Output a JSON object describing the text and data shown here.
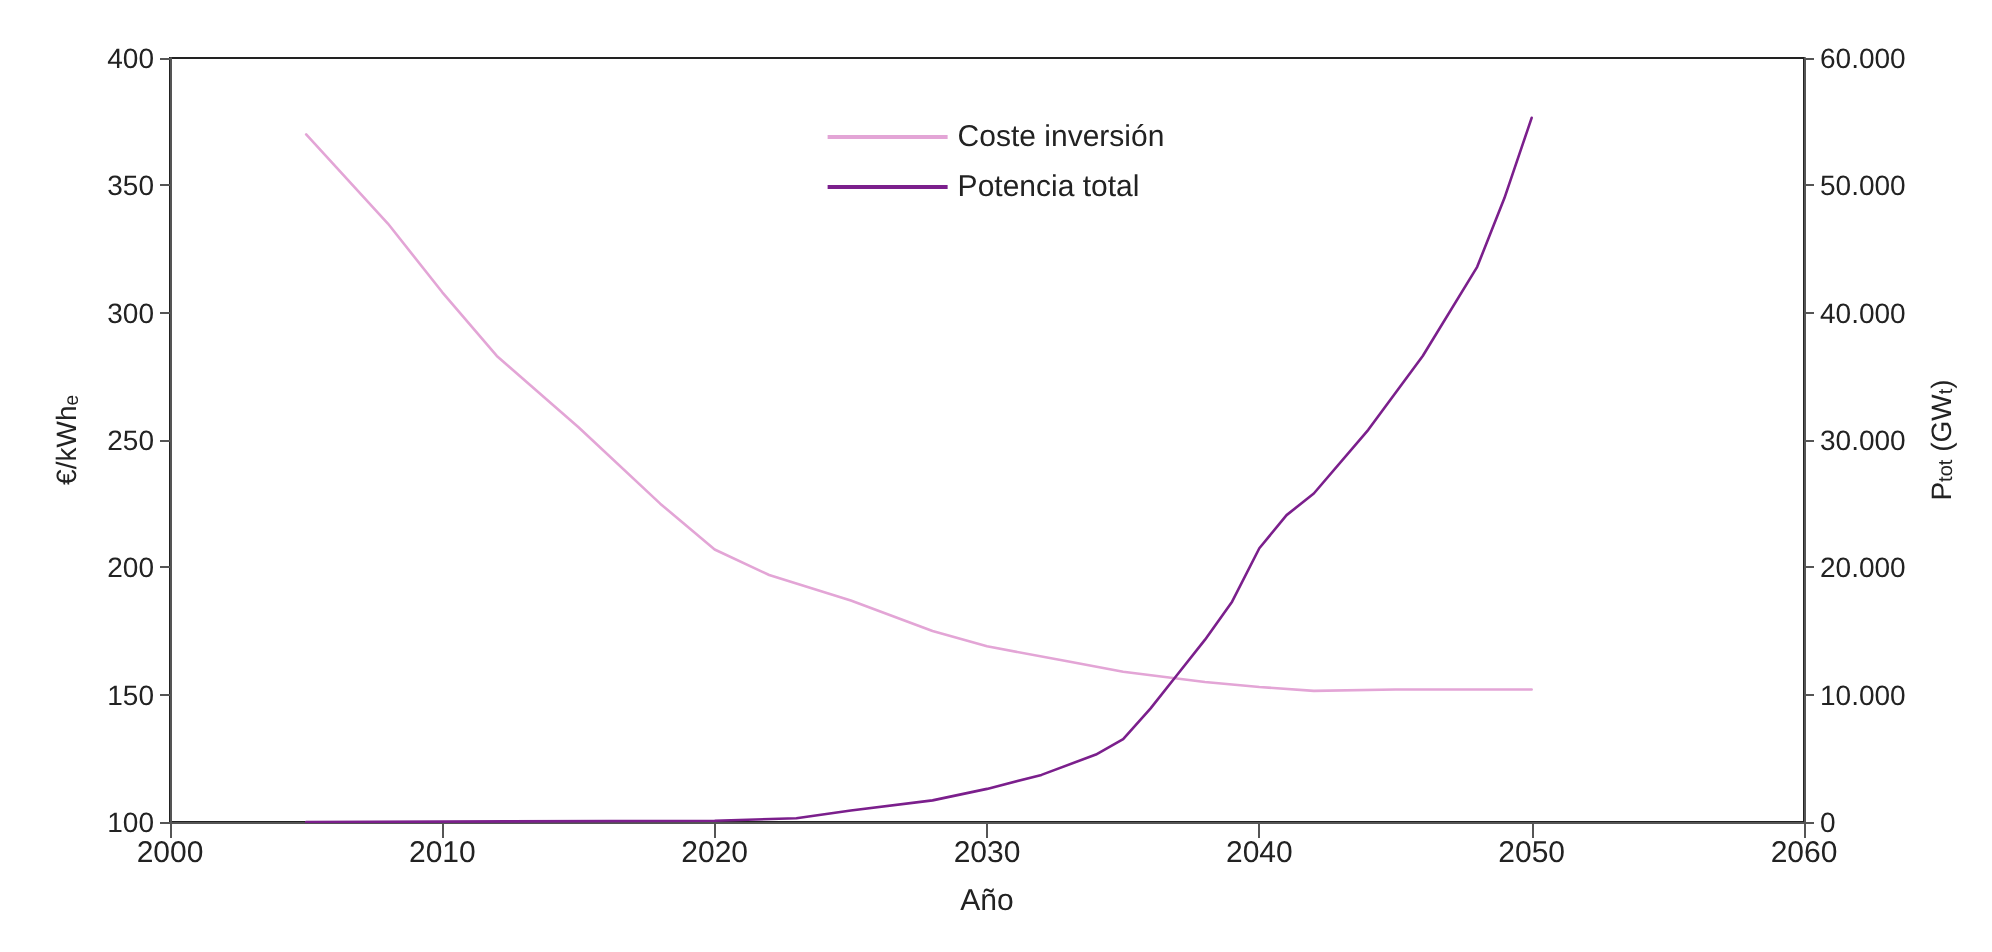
{
  "chart_data": {
    "type": "line",
    "xlabel": "Año",
    "ylabel": "€/kWhₑ",
    "y2label": "P$_{tot}$ (GW$_{t}$)",
    "xlim": [
      2000,
      2060
    ],
    "xticks": [
      2000,
      2010,
      2020,
      2030,
      2040,
      2050,
      2060
    ],
    "ylim": [
      100,
      400
    ],
    "yticks": [
      100,
      150,
      200,
      250,
      300,
      350,
      400
    ],
    "y2lim": [
      0,
      60000
    ],
    "y2ticks": [
      0,
      {
        "value": 10000,
        "label": "10.000"
      },
      {
        "value": 20000,
        "label": "20.000"
      },
      {
        "value": 30000,
        "label": "30.000"
      },
      {
        "value": 40000,
        "label": "40.000"
      },
      {
        "value": 50000,
        "label": "50.000"
      },
      {
        "value": 60000,
        "label": "60.000"
      }
    ],
    "grid": false,
    "legend": "top",
    "marker": "none",
    "line_style": "solid",
    "series": [
      {
        "name": "Coste inversión",
        "color": "#e3a5d6",
        "x": [
          2005,
          2008,
          2010,
          2012,
          2015,
          2018,
          2020,
          2022,
          2025,
          2028,
          2030,
          2033,
          2035,
          2038,
          2040,
          2042,
          2045,
          2050
        ],
        "values": [
          370,
          335,
          308,
          283,
          255,
          225,
          207,
          197,
          187,
          175,
          169,
          163,
          159,
          155,
          153,
          151.5,
          152,
          152
        ]
      },
      {
        "name": "Potencia total",
        "color": "#7b1f8c",
        "axis": "y2",
        "x": [
          2005,
          2020,
          2023,
          2025,
          2028,
          2030,
          2032,
          2034,
          2035,
          2036,
          2037,
          2038,
          2039,
          2040,
          2041,
          2042,
          2044,
          2046,
          2048,
          2049,
          2050
        ],
        "values": [
          0,
          100,
          300,
          900,
          1700,
          2600,
          3700,
          5300,
          6500,
          8900,
          11600,
          14300,
          17300,
          21500,
          24100,
          25800,
          30800,
          36600,
          43600,
          49000,
          55300
        ]
      }
    ]
  }
}
